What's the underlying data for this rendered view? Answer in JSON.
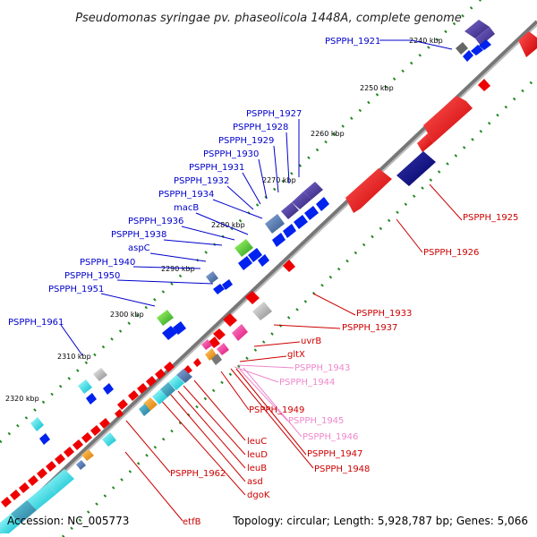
{
  "title": "Pseudomonas syringae pv. phaseolicola 1448A, complete genome",
  "footer": {
    "accession": "Accession: NC_005773",
    "stats": "Topology: circular; Length: 5,928,787 bp; Genes: 5,066"
  },
  "ticks": [
    "2240 kbp",
    "2250 kbp",
    "2260 kbp",
    "2270 kbp",
    "2280 kbp",
    "2290 kbp",
    "2300 kbp",
    "2310 kbp",
    "2320 kbp"
  ],
  "labels": {
    "blue": [
      "PSPPH_1921",
      "PSPPH_1927",
      "PSPPH_1928",
      "PSPPH_1929",
      "PSPPH_1930",
      "PSPPH_1931",
      "PSPPH_1932",
      "PSPPH_1934",
      "macB",
      "PSPPH_1936",
      "PSPPH_1938",
      "aspC",
      "PSPPH_1940",
      "PSPPH_1950",
      "PSPPH_1951",
      "PSPPH_1961"
    ],
    "red": [
      "PSPPH_1925",
      "PSPPH_1926",
      "PSPPH_1933",
      "PSPPH_1937",
      "uvrB",
      "gltX",
      "PSPPH_1949",
      "PSPPH_1947",
      "PSPPH_1948",
      "leuC",
      "leuD",
      "leuB",
      "PSPPH_1962",
      "asd",
      "dgoK",
      "etfB"
    ],
    "pink": [
      "PSPPH_1943",
      "PSPPH_1944",
      "PSPPH_1945",
      "PSPPH_1946"
    ]
  },
  "colors": {
    "blue_label": "#0000cc",
    "red_label": "#cc0000",
    "pink_label": "#ee88cc",
    "backbone": "#888888",
    "tick_dots": "#228822"
  }
}
